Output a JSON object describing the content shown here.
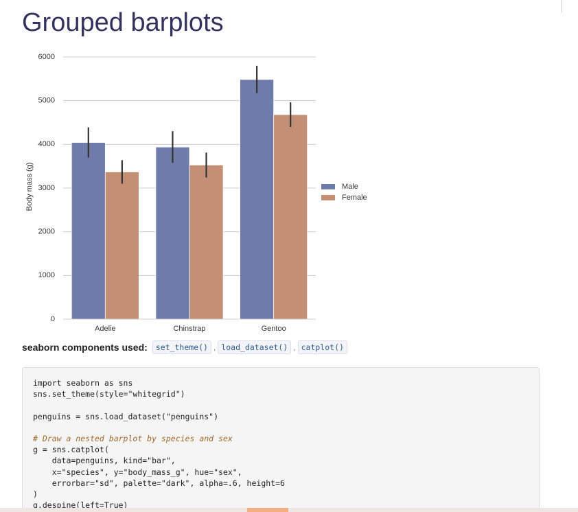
{
  "page": {
    "title": "Grouped barplots",
    "components_label": "seaborn components used:",
    "components": [
      "set_theme()",
      "load_dataset()",
      "catplot()"
    ],
    "separators": [
      ",",
      ","
    ],
    "code": [
      "import seaborn as sns",
      "sns.set_theme(style=\"whitegrid\")",
      "",
      "penguins = sns.load_dataset(\"penguins\")",
      "",
      "# Draw a nested barplot by species and sex",
      "g = sns.catplot(",
      "    data=penguins, kind=\"bar\",",
      "    x=\"species\", y=\"body_mass_g\", hue=\"sex\",",
      "    errorbar=\"sd\", palette=\"dark\", alpha=.6, height=6",
      ")",
      "g.despine(left=True)"
    ]
  },
  "chart_data": {
    "type": "bar",
    "ylabel": "Body mass (g)",
    "categories": [
      "Adelie",
      "Chinstrap",
      "Gentoo"
    ],
    "series": [
      {
        "name": "Male",
        "color": "#6f7ba9",
        "values": [
          4043,
          3939,
          5485
        ],
        "errors": [
          346,
          362,
          313
        ]
      },
      {
        "name": "Female",
        "color": "#c38f75",
        "values": [
          3369,
          3527,
          4680
        ],
        "errors": [
          269,
          285,
          282
        ]
      }
    ],
    "ylim": [
      0,
      6000
    ],
    "yticks": [
      0,
      1000,
      2000,
      3000,
      4000,
      5000,
      6000
    ],
    "grid": true,
    "legend": "right"
  }
}
